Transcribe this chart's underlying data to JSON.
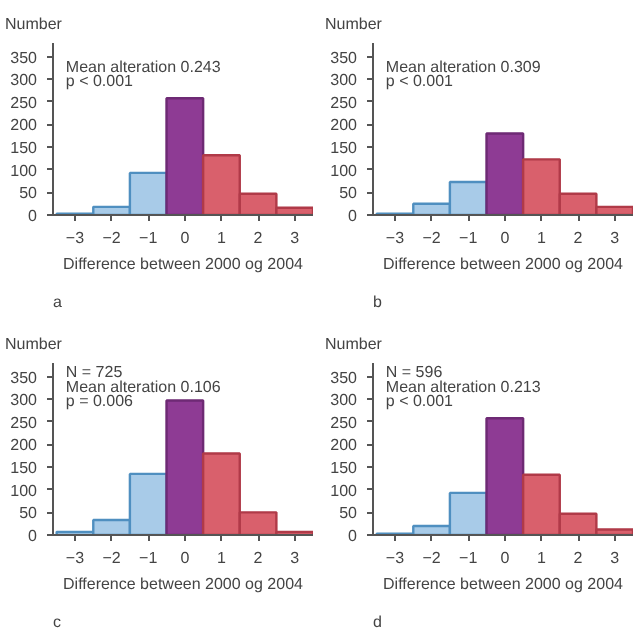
{
  "chart_data": [
    {
      "type": "histogram",
      "ylabel": "Number",
      "xlabel": "Difference between 2000 og 2004",
      "bins": [
        -3.5,
        -2.5,
        -1.5,
        -0.5,
        0.5,
        1.5,
        2.5,
        3.5
      ],
      "values": [
        3,
        18,
        93,
        258,
        132,
        47,
        16
      ],
      "colors": [
        "#a8cbe8",
        "#a8cbe8",
        "#a8cbe8",
        "#8e3b94",
        "#d9606c",
        "#d9606c",
        "#d9606c"
      ],
      "xlim": [
        -3.6,
        3.5
      ],
      "ylim": [
        0,
        380
      ],
      "xticks": [
        -3,
        -2,
        -1,
        0,
        1,
        2,
        3
      ],
      "yticks": [
        0,
        50,
        100,
        150,
        200,
        250,
        300,
        350
      ],
      "annotations": [
        "Mean alteration 0.243",
        "p < 0.001",
        "a"
      ]
    },
    {
      "type": "histogram",
      "ylabel": "Number",
      "xlabel": "Difference between 2000 og 2004",
      "bins": [
        -3.5,
        -2.5,
        -1.5,
        -0.5,
        0.5,
        1.5,
        2.5,
        3.5
      ],
      "values": [
        3,
        25,
        73,
        180,
        123,
        47,
        18
      ],
      "colors": [
        "#a8cbe8",
        "#a8cbe8",
        "#a8cbe8",
        "#8e3b94",
        "#d9606c",
        "#d9606c",
        "#d9606c"
      ],
      "xlim": [
        -3.6,
        3.5
      ],
      "ylim": [
        0,
        380
      ],
      "xticks": [
        -3,
        -2,
        -1,
        0,
        1,
        2,
        3
      ],
      "yticks": [
        0,
        50,
        100,
        150,
        200,
        250,
        300,
        350
      ],
      "annotations": [
        "Mean alteration 0.309",
        "p < 0.001",
        "b"
      ]
    },
    {
      "type": "histogram",
      "ylabel": "Number",
      "xlabel": "Difference between 2000 og 2004",
      "bins": [
        -3.5,
        -2.5,
        -1.5,
        -0.5,
        0.5,
        1.5,
        2.5,
        3.5
      ],
      "values": [
        7,
        33,
        135,
        297,
        180,
        50,
        7
      ],
      "colors": [
        "#a8cbe8",
        "#a8cbe8",
        "#a8cbe8",
        "#8e3b94",
        "#d9606c",
        "#d9606c",
        "#d9606c"
      ],
      "xlim": [
        -3.6,
        3.5
      ],
      "ylim": [
        0,
        380
      ],
      "xticks": [
        -3,
        -2,
        -1,
        0,
        1,
        2,
        3
      ],
      "yticks": [
        0,
        50,
        100,
        150,
        200,
        250,
        300,
        350
      ],
      "annotations": [
        "N = 725",
        "Mean alteration 0.106",
        "p = 0.006",
        "c"
      ]
    },
    {
      "type": "histogram",
      "ylabel": "Number",
      "xlabel": "Difference between 2000 og 2004",
      "bins": [
        -3.5,
        -2.5,
        -1.5,
        -0.5,
        0.5,
        1.5,
        2.5,
        3.5
      ],
      "values": [
        3,
        20,
        93,
        258,
        133,
        47,
        12
      ],
      "colors": [
        "#a8cbe8",
        "#a8cbe8",
        "#a8cbe8",
        "#8e3b94",
        "#d9606c",
        "#d9606c",
        "#d9606c"
      ],
      "xlim": [
        -3.6,
        3.5
      ],
      "ylim": [
        0,
        380
      ],
      "xticks": [
        -3,
        -2,
        -1,
        0,
        1,
        2,
        3
      ],
      "yticks": [
        0,
        50,
        100,
        150,
        200,
        250,
        300,
        350
      ],
      "annotations": [
        "N = 596",
        "Mean alteration 0.213",
        "p < 0.001",
        "d"
      ]
    }
  ]
}
